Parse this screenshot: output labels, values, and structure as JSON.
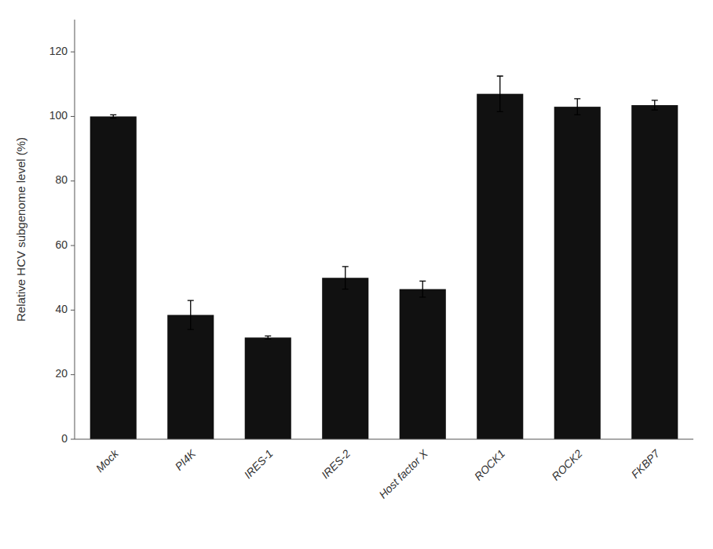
{
  "chart_data": {
    "type": "bar",
    "ylabel": "Relative HCV subgenome level (%)",
    "categories": [
      "Mock",
      "PI4K",
      "IRES-1",
      "IRES-2",
      "Host factor X",
      "ROCK1",
      "ROCK2",
      "FKBP7"
    ],
    "values": [
      100.0,
      38.5,
      31.5,
      50.0,
      46.5,
      107.0,
      103.0,
      103.5
    ],
    "errors": [
      0.5,
      4.5,
      0.5,
      3.5,
      2.5,
      5.5,
      2.5,
      1.5
    ],
    "color": "#111111",
    "ylim": [
      0,
      130
    ],
    "yticks": [
      0,
      20,
      40,
      60,
      80,
      100,
      120
    ],
    "grid": false
  }
}
